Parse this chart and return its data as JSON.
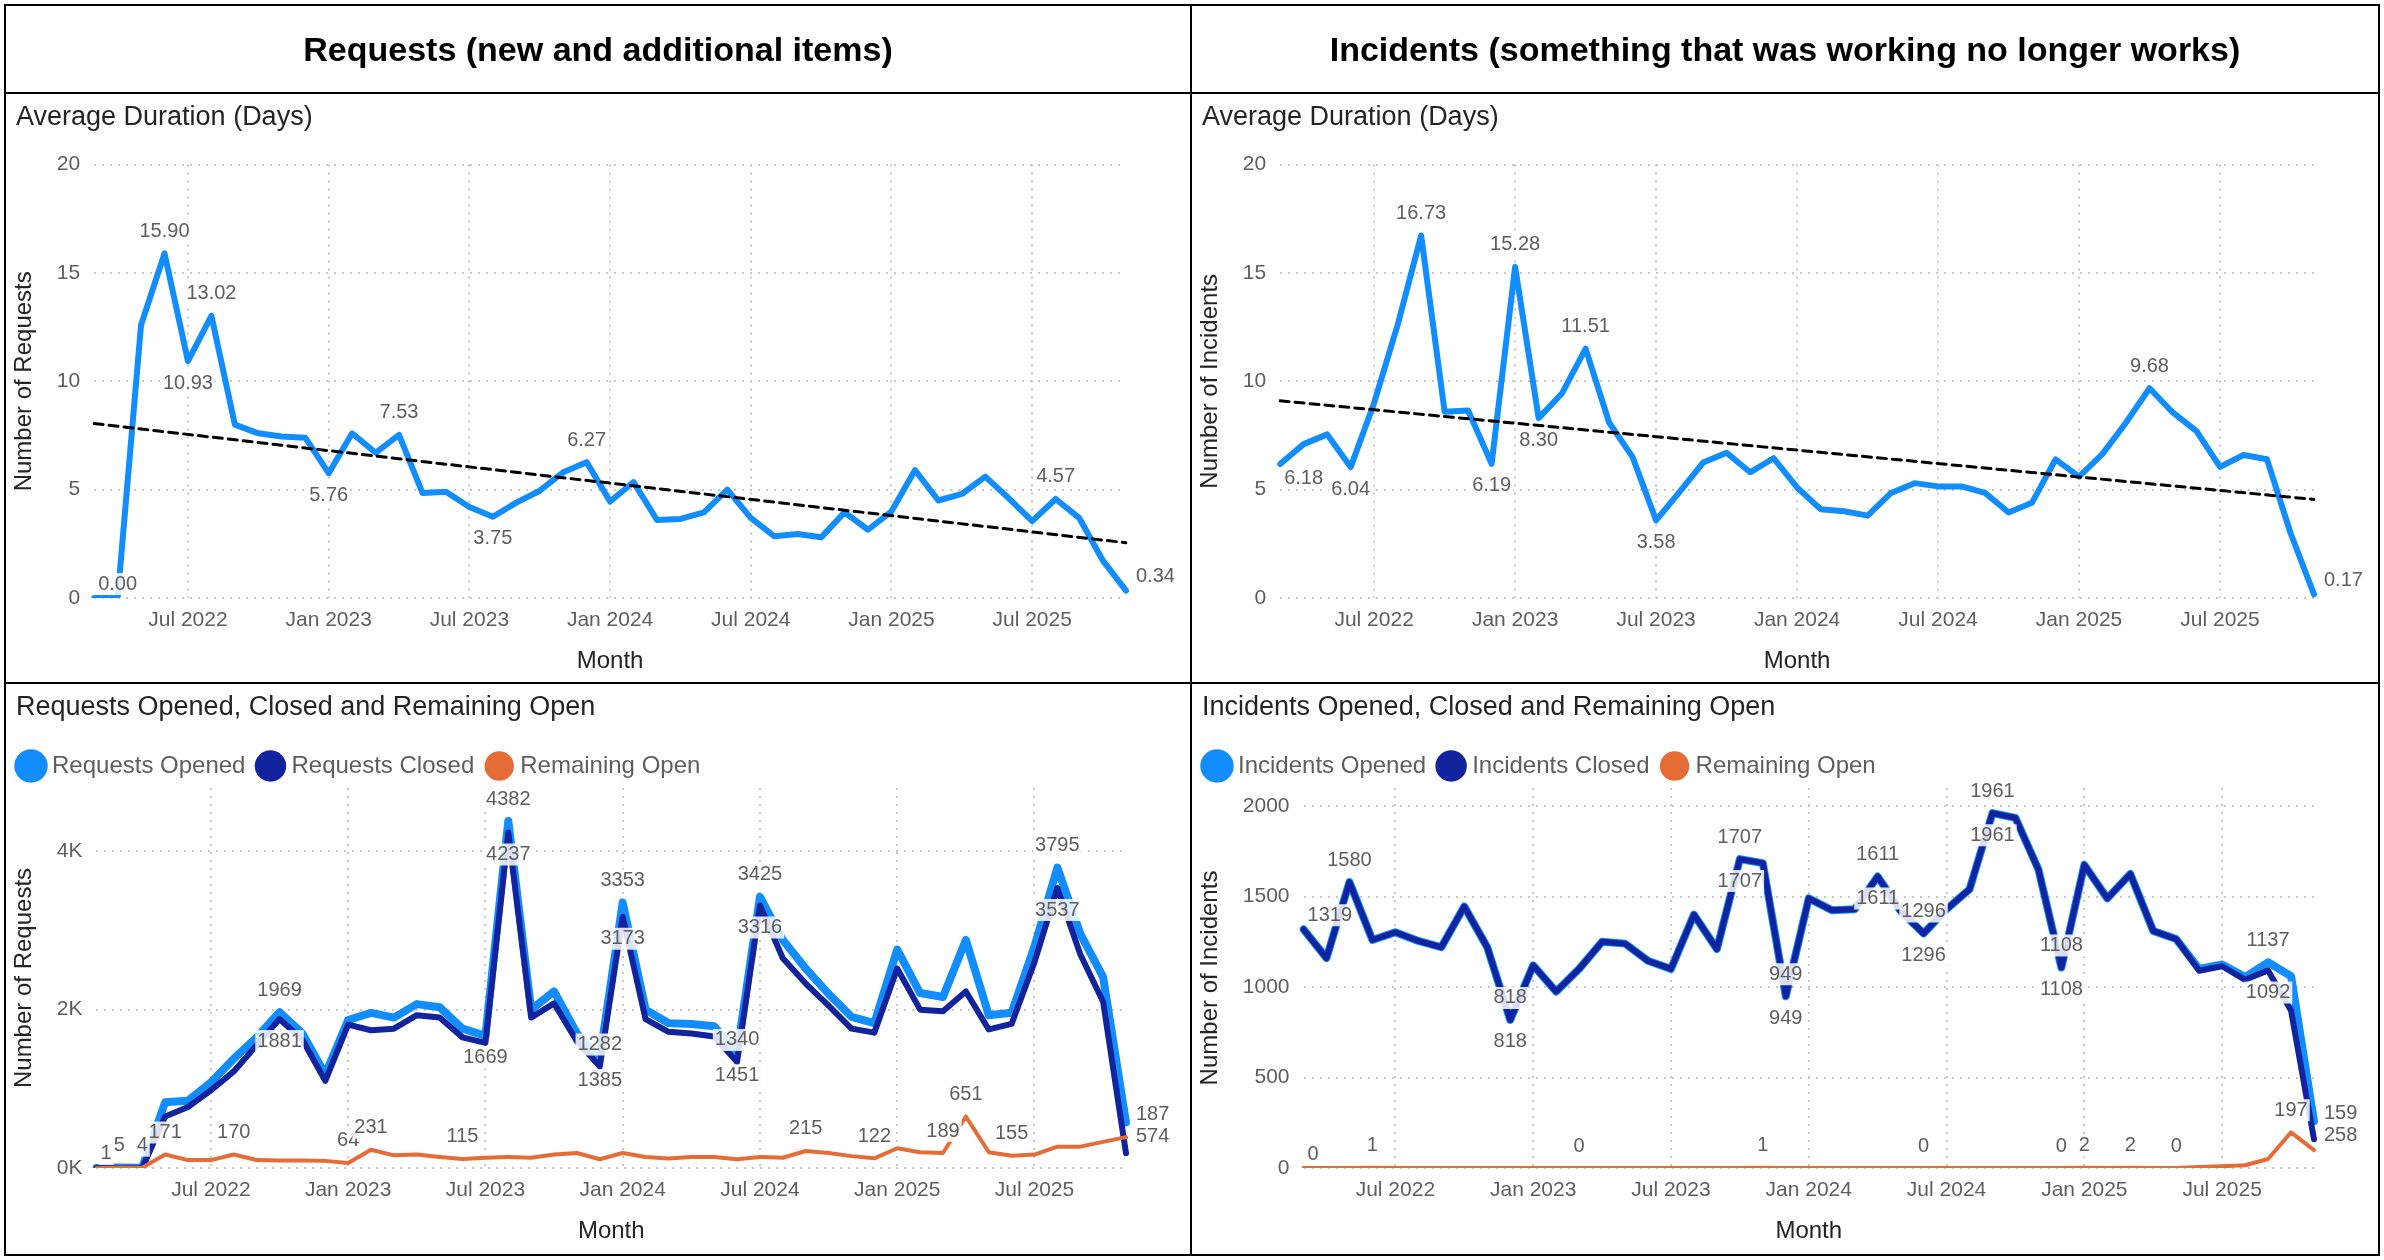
{
  "chart_data": [
    {
      "type": "line",
      "title": "Requests (new and additional items)",
      "subtitle": "Average Duration (Days)",
      "xlabel": "Month",
      "ylabel": "Number of Requests",
      "categories": [
        null,
        null,
        null,
        null,
        "Jul 2022",
        null,
        null,
        null,
        null,
        null,
        "Jan 2023",
        null,
        null,
        null,
        null,
        null,
        "Jul 2023",
        null,
        null,
        null,
        null,
        null,
        "Jan 2024",
        null,
        null,
        null,
        null,
        null,
        "Jul 2024",
        null,
        null,
        null,
        null,
        null,
        "Jan 2025",
        null,
        null,
        null,
        null,
        null,
        "Jul 2025",
        null,
        null,
        null,
        null
      ],
      "series": [
        {
          "color": "#118dff",
          "values": [
            0,
            0,
            12.6,
            15.9,
            10.93,
            13.02,
            8.0,
            7.6,
            7.45,
            7.4,
            5.76,
            7.6,
            6.7,
            7.53,
            4.85,
            4.9,
            4.2,
            3.75,
            4.4,
            4.95,
            5.8,
            6.27,
            4.45,
            5.35,
            3.6,
            3.65,
            3.95,
            5.0,
            3.7,
            2.85,
            2.95,
            2.8,
            3.95,
            3.15,
            4.0,
            5.9,
            4.5,
            4.8,
            5.6,
            4.6,
            3.55,
            4.57,
            3.7,
            1.75,
            0.34
          ],
          "value_labels": [
            "0.00",
            null,
            null,
            "15.90",
            "10.93",
            "13.02",
            null,
            null,
            null,
            null,
            "5.76",
            null,
            null,
            "7.53",
            null,
            null,
            null,
            "3.75",
            null,
            null,
            null,
            "6.27",
            null,
            null,
            null,
            null,
            null,
            null,
            null,
            null,
            null,
            null,
            null,
            null,
            null,
            null,
            null,
            null,
            null,
            null,
            null,
            "4.57",
            null,
            null,
            "0.34"
          ]
        },
        {
          "type": "line",
          "line_style": "dashed",
          "color": "#000000",
          "values": [
            8.05,
            null,
            null,
            null,
            null,
            null,
            null,
            null,
            null,
            null,
            null,
            null,
            null,
            null,
            null,
            null,
            null,
            null,
            null,
            null,
            null,
            null,
            null,
            null,
            null,
            null,
            null,
            null,
            null,
            null,
            null,
            null,
            null,
            null,
            null,
            null,
            null,
            null,
            null,
            null,
            null,
            null,
            null,
            null,
            2.55
          ]
        }
      ],
      "ylim": [
        0,
        20
      ],
      "yticks": [
        0,
        5,
        10,
        15,
        20
      ],
      "grid": true,
      "marker": "none",
      "legend": false
    },
    {
      "type": "line",
      "title": "Incidents (something that was working no longer works)",
      "subtitle": "Average Duration (Days)",
      "xlabel": "Month",
      "ylabel": "Number of Incidents",
      "categories": [
        null,
        null,
        null,
        null,
        "Jul 2022",
        null,
        null,
        null,
        null,
        null,
        "Jan 2023",
        null,
        null,
        null,
        null,
        null,
        "Jul 2023",
        null,
        null,
        null,
        null,
        null,
        "Jan 2024",
        null,
        null,
        null,
        null,
        null,
        "Jul 2024",
        null,
        null,
        null,
        null,
        null,
        "Jan 2025",
        null,
        null,
        null,
        null,
        null,
        "Jul 2025",
        null,
        null,
        null,
        null
      ],
      "series": [
        {
          "color": "#118dff",
          "values": [
            6.18,
            7.1,
            7.55,
            6.04,
            9.0,
            12.6,
            16.73,
            8.6,
            8.65,
            6.19,
            15.28,
            8.3,
            9.45,
            11.51,
            8.1,
            6.5,
            3.58,
            4.9,
            6.25,
            6.7,
            5.8,
            6.45,
            5.1,
            4.1,
            4.0,
            3.8,
            4.85,
            5.3,
            5.15,
            5.15,
            4.85,
            3.95,
            4.4,
            6.4,
            5.6,
            6.65,
            8.1,
            9.68,
            8.55,
            7.7,
            6.05,
            6.6,
            6.4,
            3.0,
            0.17
          ],
          "value_labels": [
            "6.18",
            null,
            null,
            "6.04",
            null,
            null,
            "16.73",
            null,
            null,
            "6.19",
            "15.28",
            "8.30",
            null,
            "11.51",
            null,
            null,
            "3.58",
            null,
            null,
            null,
            null,
            null,
            null,
            null,
            null,
            null,
            null,
            null,
            null,
            null,
            null,
            null,
            null,
            null,
            null,
            null,
            null,
            "9.68",
            null,
            null,
            null,
            null,
            null,
            null,
            "0.17"
          ]
        },
        {
          "type": "line",
          "line_style": "dashed",
          "color": "#000000",
          "values": [
            9.1,
            null,
            null,
            null,
            null,
            null,
            null,
            null,
            null,
            null,
            null,
            null,
            null,
            null,
            null,
            null,
            null,
            null,
            null,
            null,
            null,
            null,
            null,
            null,
            null,
            null,
            null,
            null,
            null,
            null,
            null,
            null,
            null,
            null,
            null,
            null,
            null,
            null,
            null,
            null,
            null,
            null,
            null,
            null,
            4.55
          ]
        }
      ],
      "ylim": [
        0,
        20
      ],
      "yticks": [
        0,
        5,
        10,
        15,
        20
      ],
      "grid": true,
      "marker": "none",
      "legend": false
    },
    {
      "type": "line",
      "title": "Requests Opened, Closed and Remaining Open",
      "xlabel": "Month",
      "ylabel": "Number of Requests",
      "categories": [
        null,
        null,
        null,
        null,
        null,
        "Jul 2022",
        null,
        null,
        null,
        null,
        null,
        "Jan 2023",
        null,
        null,
        null,
        null,
        null,
        "Jul 2023",
        null,
        null,
        null,
        null,
        null,
        "Jan 2024",
        null,
        null,
        null,
        null,
        null,
        "Jul 2024",
        null,
        null,
        null,
        null,
        null,
        "Jan 2025",
        null,
        null,
        null,
        null,
        null,
        "Jul 2025",
        null,
        null,
        null,
        null
      ],
      "series": [
        {
          "name": "Requests Opened",
          "color": "#118dff",
          "values": [
            1,
            5,
            4,
            830,
            850,
            1080,
            1380,
            1650,
            1969,
            1700,
            1180,
            1870,
            1960,
            1900,
            2070,
            2030,
            1760,
            1669,
            4382,
            2000,
            2230,
            1700,
            1385,
            3353,
            2000,
            1830,
            1820,
            1790,
            1451,
            3425,
            2880,
            2520,
            2200,
            1910,
            1830,
            2760,
            2210,
            2160,
            2880,
            1930,
            1960,
            2800,
            3795,
            2960,
            2410,
            574
          ],
          "value_labels": [
            null,
            null,
            null,
            null,
            null,
            null,
            null,
            null,
            "1969",
            null,
            null,
            null,
            null,
            null,
            null,
            null,
            null,
            "1669",
            "4382",
            null,
            null,
            null,
            "1385",
            "3353",
            null,
            null,
            null,
            null,
            "1451",
            "3425",
            null,
            null,
            null,
            null,
            null,
            null,
            null,
            null,
            null,
            null,
            null,
            null,
            "3795",
            null,
            null,
            "574"
          ]
        },
        {
          "name": "Requests Closed",
          "color": "#12239e",
          "values": [
            0,
            0,
            0,
            650,
            770,
            980,
            1220,
            1550,
            1881,
            1620,
            1100,
            1810,
            1740,
            1760,
            1930,
            1900,
            1650,
            1580,
            4237,
            1900,
            2080,
            1600,
            1282,
            3173,
            1880,
            1720,
            1700,
            1660,
            1340,
            3316,
            2650,
            2330,
            2050,
            1760,
            1710,
            2520,
            2000,
            1980,
            2230,
            1750,
            1820,
            2600,
            3537,
            2700,
            2100,
            187
          ],
          "value_labels": [
            null,
            null,
            null,
            null,
            null,
            null,
            null,
            null,
            "1881",
            null,
            null,
            null,
            null,
            null,
            null,
            null,
            null,
            null,
            "4237",
            null,
            null,
            null,
            "1282",
            "3173",
            null,
            null,
            null,
            null,
            "1340",
            "3316",
            null,
            null,
            null,
            null,
            null,
            null,
            null,
            null,
            null,
            null,
            null,
            null,
            "3537",
            null,
            null,
            "187"
          ]
        },
        {
          "name": "Remaining Open",
          "color": "#e66c37",
          "values": [
            1,
            5,
            4,
            171,
            100,
            100,
            170,
            100,
            95,
            95,
            90,
            64,
            231,
            160,
            170,
            140,
            115,
            130,
            140,
            130,
            170,
            190,
            110,
            190,
            140,
            120,
            140,
            140,
            110,
            140,
            130,
            215,
            190,
            150,
            122,
            250,
            200,
            189,
            651,
            200,
            155,
            170,
            270,
            270,
            330,
            390
          ],
          "value_labels": [
            "1",
            "5",
            "4",
            "171",
            null,
            null,
            "170",
            null,
            null,
            null,
            null,
            "64",
            "231",
            null,
            null,
            null,
            "115",
            null,
            null,
            null,
            null,
            null,
            null,
            null,
            null,
            null,
            null,
            null,
            null,
            null,
            null,
            "215",
            null,
            null,
            "122",
            null,
            null,
            "189",
            "651",
            null,
            "155",
            null,
            null,
            null,
            null,
            null
          ]
        }
      ],
      "ylim": [
        0,
        4800
      ],
      "yticks": [
        {
          "value": 0,
          "label": "0K"
        },
        {
          "value": 2000,
          "label": "2K"
        },
        {
          "value": 4000,
          "label": "4K"
        }
      ],
      "grid": true,
      "marker": "none",
      "legend": "top left"
    },
    {
      "type": "line",
      "title": "Incidents Opened, Closed and Remaining Open",
      "xlabel": "Month",
      "ylabel": "Number of Incidents",
      "categories": [
        null,
        null,
        null,
        null,
        "Jul 2022",
        null,
        null,
        null,
        null,
        null,
        "Jan 2023",
        null,
        null,
        null,
        null,
        null,
        "Jul 2023",
        null,
        null,
        null,
        null,
        null,
        "Jan 2024",
        null,
        null,
        null,
        null,
        null,
        "Jul 2024",
        null,
        null,
        null,
        null,
        null,
        "Jan 2025",
        null,
        null,
        null,
        null,
        null,
        "Jul 2025",
        null,
        null,
        null,
        null
      ],
      "series": [
        {
          "name": "Incidents Opened",
          "color": "#118dff",
          "values": [
            1319,
            1160,
            1580,
            1260,
            1303,
            1255,
            1220,
            1445,
            1220,
            818,
            1120,
            975,
            1100,
            1250,
            1240,
            1145,
            1100,
            1400,
            1210,
            1707,
            1685,
            949,
            1490,
            1425,
            1430,
            1611,
            1420,
            1296,
            1430,
            1540,
            1961,
            1935,
            1650,
            1108,
            1675,
            1490,
            1625,
            1310,
            1265,
            1100,
            1125,
            1055,
            1137,
            1060,
            258
          ],
          "value_labels": [
            null,
            null,
            null,
            null,
            null,
            null,
            null,
            null,
            null,
            "818",
            null,
            null,
            null,
            null,
            null,
            null,
            null,
            null,
            null,
            "1707",
            null,
            "949",
            null,
            null,
            null,
            "1611",
            null,
            "1296",
            null,
            null,
            "1961",
            null,
            null,
            "1108",
            null,
            null,
            null,
            null,
            null,
            null,
            null,
            null,
            "1137",
            null,
            "258"
          ]
        },
        {
          "name": "Incidents Closed",
          "color": "#12239e",
          "values": [
            1319,
            1160,
            1580,
            1260,
            1303,
            1255,
            1220,
            1445,
            1220,
            818,
            1120,
            975,
            1100,
            1250,
            1240,
            1145,
            1100,
            1400,
            1210,
            1707,
            1685,
            949,
            1490,
            1425,
            1430,
            1611,
            1420,
            1296,
            1430,
            1540,
            1961,
            1935,
            1650,
            1108,
            1675,
            1490,
            1625,
            1310,
            1265,
            1090,
            1115,
            1040,
            1092,
            870,
            159
          ],
          "value_labels": [
            "1319",
            null,
            "1580",
            null,
            null,
            null,
            null,
            null,
            null,
            "818",
            null,
            null,
            null,
            null,
            null,
            null,
            null,
            null,
            null,
            "1707",
            null,
            "949",
            null,
            null,
            null,
            "1611",
            null,
            "1296",
            null,
            null,
            "1961",
            null,
            null,
            "1108",
            null,
            null,
            null,
            null,
            null,
            null,
            null,
            null,
            "1092",
            null,
            "159"
          ]
        },
        {
          "name": "Remaining Open",
          "color": "#e66c37",
          "values": [
            0,
            0,
            0,
            1,
            0,
            0,
            0,
            0,
            0,
            0,
            0,
            0,
            0,
            0,
            0,
            0,
            0,
            0,
            0,
            0,
            1,
            0,
            0,
            0,
            0,
            0,
            0,
            0,
            0,
            0,
            0,
            0,
            0,
            0,
            2,
            0,
            2,
            0,
            0,
            5,
            10,
            15,
            50,
            197,
            99
          ],
          "value_labels": [
            "0",
            null,
            null,
            "1",
            null,
            null,
            null,
            null,
            null,
            null,
            null,
            null,
            "0",
            null,
            null,
            null,
            null,
            null,
            null,
            null,
            "1",
            null,
            null,
            null,
            null,
            null,
            null,
            "0",
            null,
            null,
            null,
            null,
            null,
            "0",
            "2",
            null,
            "2",
            null,
            "0",
            null,
            null,
            null,
            null,
            "197",
            null
          ]
        }
      ],
      "ylim": [
        0,
        2100
      ],
      "yticks": [
        0,
        500,
        1000,
        1500,
        2000
      ],
      "grid": true,
      "marker": "none",
      "legend": "top left"
    }
  ]
}
